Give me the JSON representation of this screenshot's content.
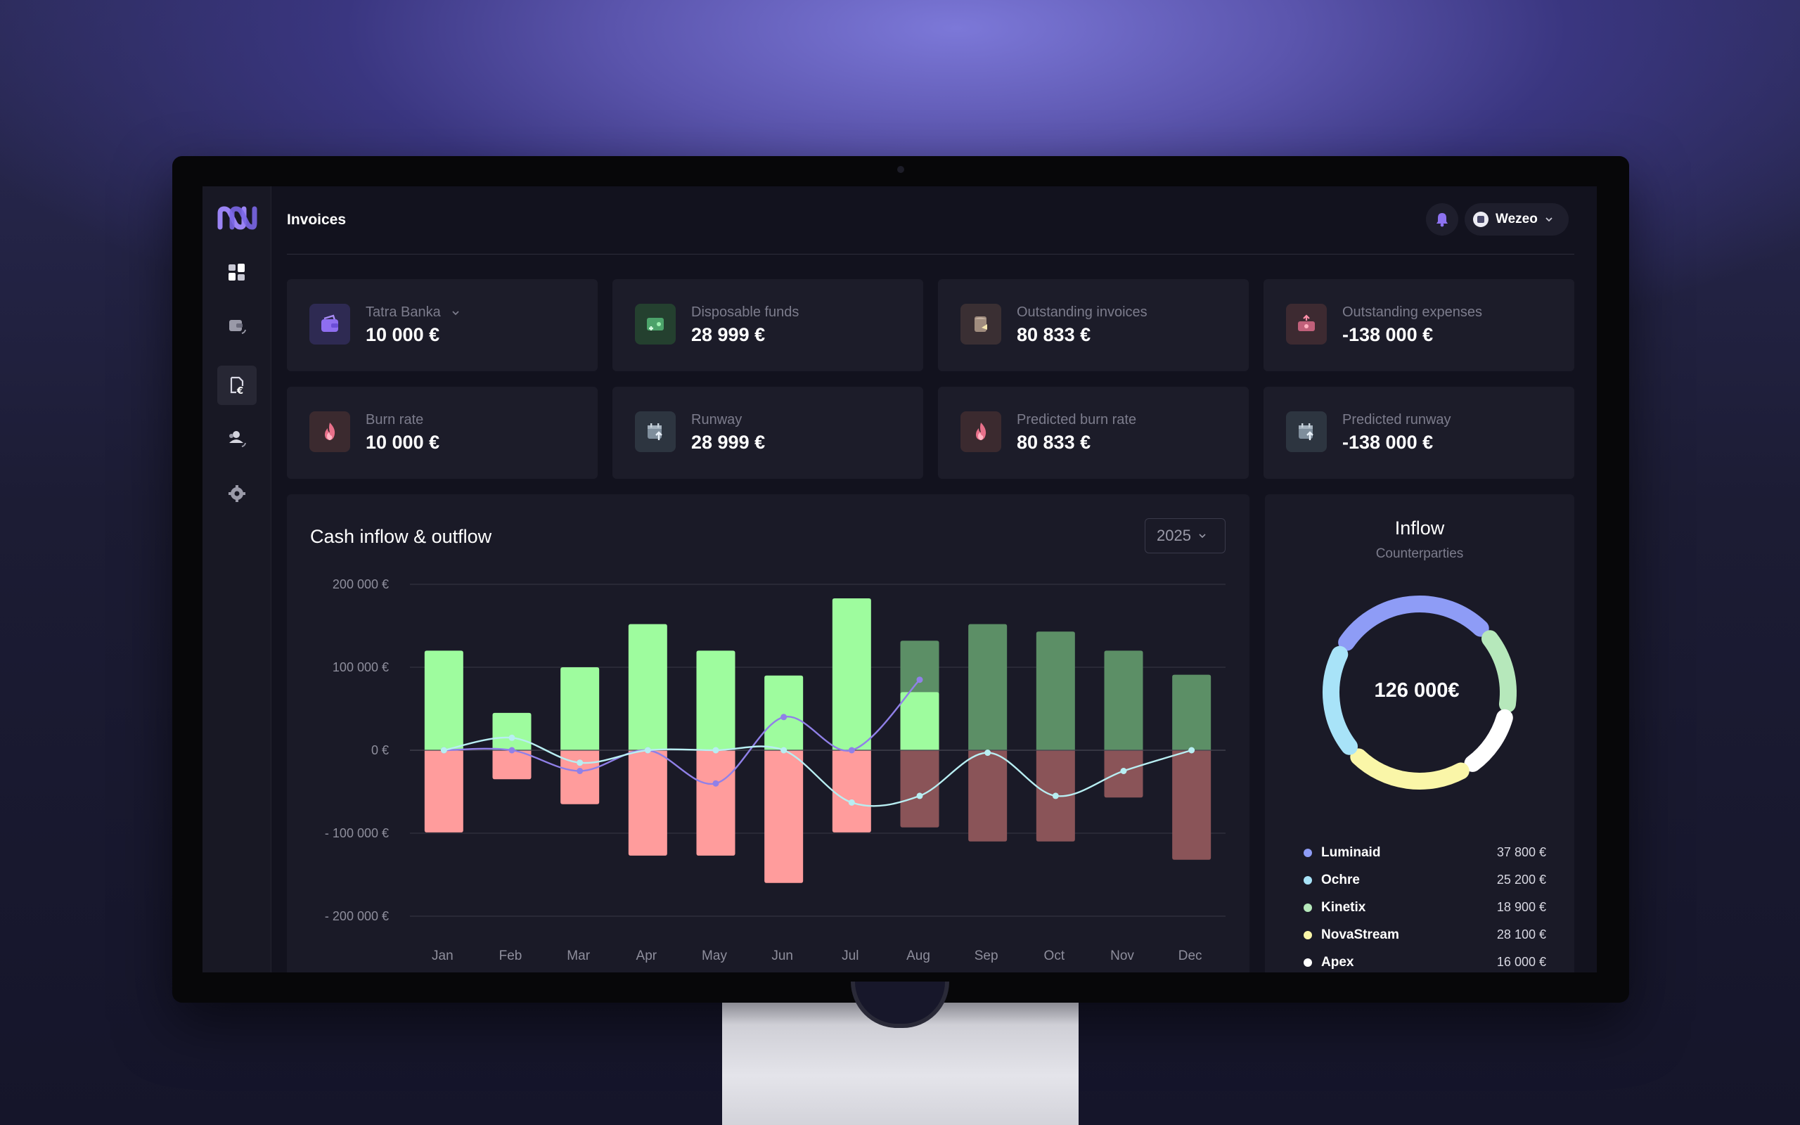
{
  "header": {
    "title": "Invoices",
    "org_name": "Wezeo"
  },
  "sidebar": {
    "items": [
      {
        "name": "dashboard-icon"
      },
      {
        "name": "wallet-icon"
      },
      {
        "name": "invoice-icon",
        "active": true
      },
      {
        "name": "users-icon"
      },
      {
        "name": "settings-icon"
      }
    ]
  },
  "cards": [
    {
      "label": "Tatra Banka",
      "value": "10 000 €",
      "icon": "wallet-icon",
      "dropdown": true
    },
    {
      "label": "Disposable funds",
      "value": "28 999 €",
      "icon": "money-plus-icon"
    },
    {
      "label": "Outstanding invoices",
      "value": "80 833 €",
      "icon": "document-icon"
    },
    {
      "label": "Outstanding expenses",
      "value": "-138 000 €",
      "icon": "expense-icon"
    },
    {
      "label": "Burn rate",
      "value": "10 000 €",
      "icon": "flame-icon"
    },
    {
      "label": "Runway",
      "value": "28 999 €",
      "icon": "calendar-up-icon"
    },
    {
      "label": "Predicted burn rate",
      "value": "80 833 €",
      "icon": "flame-icon"
    },
    {
      "label": "Predicted runway",
      "value": "-138 000 €",
      "icon": "calendar-up-icon"
    }
  ],
  "cashflow": {
    "title": "Cash inflow & outflow",
    "year": "2025"
  },
  "chart_data": {
    "type": "bar",
    "title": "Cash inflow & outflow",
    "categories": [
      "Jan",
      "Feb",
      "Mar",
      "Apr",
      "May",
      "Jun",
      "Jul",
      "Aug",
      "Sep",
      "Oct",
      "Nov",
      "Dec"
    ],
    "y_tick_labels": [
      "200 000 €",
      "100 000 €",
      "0 €",
      "- 100 000 €",
      "- 200 000 €"
    ],
    "ylim": [
      -200000,
      200000
    ],
    "series": [
      {
        "kind": "bar",
        "values": [
          120000,
          45000,
          100000,
          152000,
          120000,
          90000,
          183000,
          70000,
          null,
          null,
          null,
          null
        ]
      },
      {
        "kind": "bar",
        "values": [
          -99000,
          -35000,
          -65000,
          -127000,
          -127000,
          -160000,
          -99000,
          null,
          null,
          null,
          null,
          null
        ]
      },
      {
        "kind": "bar",
        "predicted": true,
        "values": [
          null,
          null,
          null,
          null,
          null,
          null,
          null,
          132000,
          152000,
          143000,
          120000,
          91000
        ]
      },
      {
        "kind": "bar",
        "predicted": true,
        "values": [
          null,
          null,
          null,
          null,
          null,
          null,
          null,
          -93000,
          -110000,
          -110000,
          -57000,
          -132000
        ]
      },
      {
        "kind": "line",
        "color": "#9080e8",
        "values": [
          0,
          0,
          -25000,
          0,
          -40000,
          40000,
          0,
          85000,
          null,
          null,
          null,
          null
        ]
      },
      {
        "kind": "line",
        "color": "#b8eef2",
        "values": [
          0,
          15000,
          -15000,
          0,
          0,
          0,
          -63000,
          -55000,
          -3000,
          -55000,
          -25000,
          0
        ]
      }
    ],
    "colors": {
      "inflow": "#9efc9e",
      "outflow": "#ff9c9c",
      "predicted_inflow": "#5c8f66",
      "predicted_outflow": "#8a5458"
    },
    "grid": true
  },
  "inflow": {
    "title": "Inflow",
    "subtitle": "Counterparties",
    "total": "126 000€",
    "items": [
      {
        "name": "Luminaid",
        "value": "37 800 €",
        "amount": 37800,
        "color": "#8e9cf6"
      },
      {
        "name": "Ochre",
        "value": "25 200 €",
        "amount": 25200,
        "color": "#a8e3f8"
      },
      {
        "name": "Kinetix",
        "value": "18 900 €",
        "amount": 18900,
        "color": "#b6e8bb"
      },
      {
        "name": "NovaStream",
        "value": "28 100 €",
        "amount": 28100,
        "color": "#faf6a8"
      },
      {
        "name": "Apex",
        "value": "16 000 €",
        "amount": 16000,
        "color": "#ffffff"
      }
    ]
  }
}
